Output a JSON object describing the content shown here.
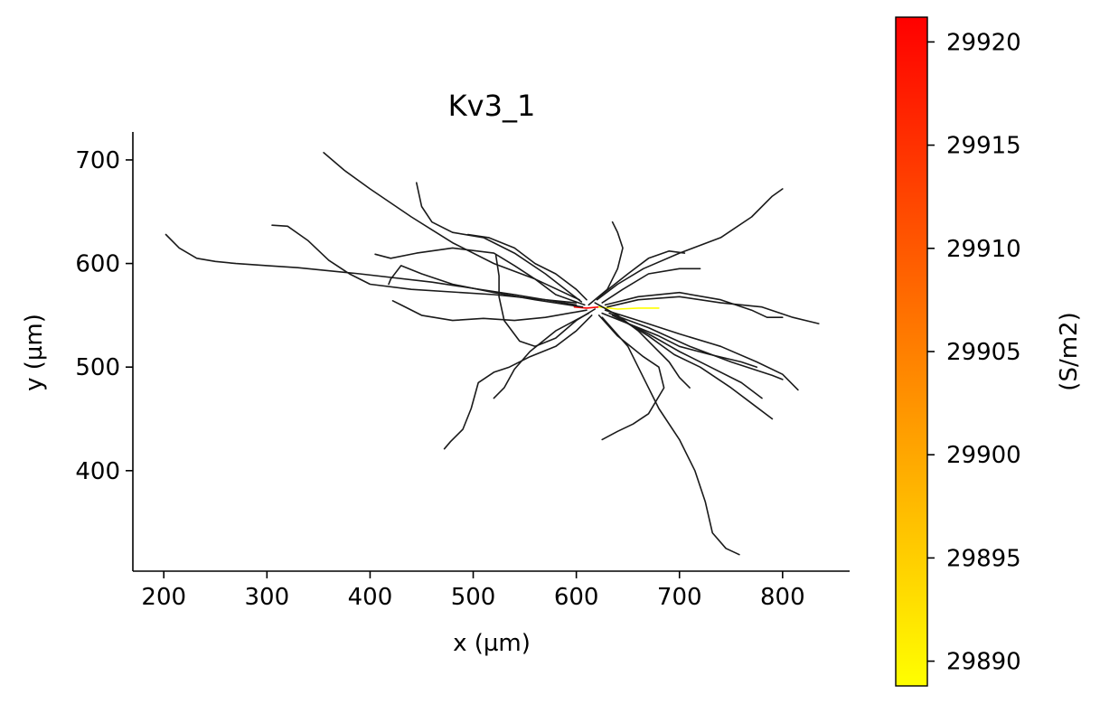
{
  "chart_data": {
    "type": "line",
    "title": "Kv3_1",
    "xlabel": "x (µm)",
    "ylabel": "y (µm)",
    "xlim": [
      170,
      865
    ],
    "ylim": [
      303,
      727
    ],
    "xticks": [
      200,
      300,
      400,
      500,
      600,
      700,
      800
    ],
    "yticks": [
      400,
      500,
      600,
      700
    ],
    "grid": false,
    "line_color": "#1a1a1a",
    "colorbar": {
      "label": "(S/m2)",
      "colormap": "autumn_r",
      "color_low": "#ffff00",
      "color_high": "#ff0000",
      "range": [
        29888.8,
        29921.2
      ],
      "ticks": [
        29890,
        29895,
        29900,
        29905,
        29910,
        29915,
        29920
      ]
    },
    "series": [
      {
        "color": "#ff0000",
        "points": [
          [
            598,
            558
          ],
          [
            610,
            557
          ],
          [
            622,
            558
          ]
        ]
      },
      {
        "color": "#ffff00",
        "points": [
          [
            622,
            558
          ],
          [
            640,
            556
          ],
          [
            660,
            557
          ],
          [
            680,
            557
          ]
        ]
      },
      {
        "color": "#1a1a1a",
        "points": [
          [
            600,
            560
          ],
          [
            540,
            570
          ],
          [
            460,
            582
          ],
          [
            390,
            590
          ],
          [
            330,
            596
          ],
          [
            300,
            598
          ],
          [
            270,
            600
          ],
          [
            250,
            602
          ],
          [
            232,
            605
          ],
          [
            215,
            615
          ],
          [
            202,
            628
          ]
        ]
      },
      {
        "color": "#1a1a1a",
        "points": [
          [
            600,
            562
          ],
          [
            520,
            570
          ],
          [
            440,
            575
          ],
          [
            400,
            580
          ],
          [
            380,
            590
          ],
          [
            360,
            603
          ],
          [
            340,
            622
          ],
          [
            320,
            636
          ],
          [
            305,
            637
          ]
        ]
      },
      {
        "color": "#1a1a1a",
        "points": [
          [
            603,
            565
          ],
          [
            560,
            585
          ],
          [
            520,
            600
          ],
          [
            480,
            620
          ],
          [
            440,
            645
          ],
          [
            400,
            672
          ],
          [
            375,
            690
          ],
          [
            355,
            707
          ]
        ]
      },
      {
        "color": "#1a1a1a",
        "points": [
          [
            605,
            563
          ],
          [
            570,
            590
          ],
          [
            540,
            610
          ],
          [
            510,
            625
          ],
          [
            480,
            630
          ],
          [
            460,
            640
          ],
          [
            450,
            655
          ],
          [
            445,
            678
          ]
        ]
      },
      {
        "color": "#1a1a1a",
        "points": [
          [
            608,
            560
          ],
          [
            580,
            570
          ],
          [
            560,
            585
          ],
          [
            540,
            598
          ],
          [
            520,
            610
          ],
          [
            480,
            615
          ],
          [
            445,
            610
          ],
          [
            420,
            605
          ],
          [
            405,
            609
          ]
        ]
      },
      {
        "color": "#1a1a1a",
        "points": [
          [
            606,
            558
          ],
          [
            560,
            565
          ],
          [
            520,
            572
          ],
          [
            480,
            580
          ],
          [
            450,
            590
          ],
          [
            430,
            598
          ],
          [
            420,
            585
          ],
          [
            418,
            580
          ]
        ]
      },
      {
        "color": "#1a1a1a",
        "points": [
          [
            610,
            555
          ],
          [
            570,
            548
          ],
          [
            540,
            545
          ],
          [
            510,
            547
          ],
          [
            480,
            545
          ],
          [
            450,
            550
          ],
          [
            430,
            560
          ],
          [
            422,
            564
          ]
        ]
      },
      {
        "color": "#1a1a1a",
        "points": [
          [
            612,
            552
          ],
          [
            580,
            535
          ],
          [
            555,
            515
          ],
          [
            540,
            498
          ],
          [
            530,
            480
          ],
          [
            520,
            470
          ]
        ]
      },
      {
        "color": "#1a1a1a",
        "points": [
          [
            615,
            550
          ],
          [
            600,
            535
          ],
          [
            580,
            520
          ],
          [
            555,
            510
          ],
          [
            535,
            500
          ],
          [
            520,
            495
          ],
          [
            505,
            485
          ],
          [
            498,
            460
          ],
          [
            490,
            440
          ],
          [
            478,
            428
          ],
          [
            472,
            421
          ]
        ]
      },
      {
        "color": "#1a1a1a",
        "points": [
          [
            618,
            556
          ],
          [
            600,
            545
          ],
          [
            580,
            528
          ],
          [
            560,
            520
          ],
          [
            545,
            525
          ],
          [
            530,
            545
          ],
          [
            525,
            568
          ],
          [
            525,
            588
          ],
          [
            522,
            608
          ]
        ]
      },
      {
        "color": "#1a1a1a",
        "points": [
          [
            622,
            550
          ],
          [
            640,
            530
          ],
          [
            665,
            510
          ],
          [
            680,
            500
          ],
          [
            685,
            480
          ],
          [
            670,
            455
          ],
          [
            655,
            445
          ],
          [
            640,
            438
          ],
          [
            625,
            430
          ]
        ]
      },
      {
        "color": "#1a1a1a",
        "points": [
          [
            625,
            548
          ],
          [
            650,
            520
          ],
          [
            665,
            490
          ],
          [
            680,
            460
          ],
          [
            700,
            430
          ],
          [
            715,
            400
          ],
          [
            725,
            370
          ],
          [
            732,
            340
          ],
          [
            745,
            325
          ],
          [
            758,
            319
          ]
        ]
      },
      {
        "color": "#1a1a1a",
        "points": [
          [
            625,
            552
          ],
          [
            655,
            540
          ],
          [
            680,
            530
          ],
          [
            700,
            520
          ],
          [
            730,
            512
          ],
          [
            760,
            505
          ],
          [
            775,
            500
          ]
        ]
      },
      {
        "color": "#1a1a1a",
        "points": [
          [
            628,
            555
          ],
          [
            660,
            545
          ],
          [
            700,
            532
          ],
          [
            740,
            520
          ],
          [
            775,
            505
          ],
          [
            800,
            493
          ],
          [
            815,
            478
          ]
        ]
      },
      {
        "color": "#1a1a1a",
        "points": [
          [
            632,
            552
          ],
          [
            670,
            538
          ],
          [
            710,
            520
          ],
          [
            750,
            505
          ],
          [
            790,
            492
          ],
          [
            800,
            488
          ]
        ]
      },
      {
        "color": "#1a1a1a",
        "points": [
          [
            635,
            550
          ],
          [
            670,
            532
          ],
          [
            700,
            515
          ],
          [
            730,
            500
          ],
          [
            760,
            485
          ],
          [
            780,
            470
          ]
        ]
      },
      {
        "color": "#1a1a1a",
        "points": [
          [
            640,
            548
          ],
          [
            670,
            530
          ],
          [
            695,
            512
          ],
          [
            720,
            500
          ],
          [
            750,
            480
          ],
          [
            770,
            465
          ],
          [
            790,
            450
          ]
        ]
      },
      {
        "color": "#1a1a1a",
        "points": [
          [
            630,
            558
          ],
          [
            660,
            565
          ],
          [
            700,
            568
          ],
          [
            740,
            562
          ],
          [
            780,
            558
          ],
          [
            810,
            548
          ],
          [
            835,
            542
          ]
        ]
      },
      {
        "color": "#1a1a1a",
        "points": [
          [
            628,
            560
          ],
          [
            660,
            568
          ],
          [
            700,
            572
          ],
          [
            740,
            565
          ],
          [
            770,
            555
          ],
          [
            785,
            548
          ],
          [
            800,
            548
          ]
        ]
      },
      {
        "color": "#1a1a1a",
        "points": [
          [
            625,
            562
          ],
          [
            645,
            575
          ],
          [
            670,
            590
          ],
          [
            700,
            595
          ],
          [
            720,
            595
          ]
        ]
      },
      {
        "color": "#1a1a1a",
        "points": [
          [
            620,
            565
          ],
          [
            640,
            580
          ],
          [
            665,
            595
          ],
          [
            700,
            610
          ],
          [
            740,
            625
          ],
          [
            770,
            645
          ],
          [
            790,
            665
          ],
          [
            800,
            672
          ]
        ]
      },
      {
        "color": "#1a1a1a",
        "points": [
          [
            622,
            568
          ],
          [
            650,
            590
          ],
          [
            670,
            605
          ],
          [
            690,
            612
          ],
          [
            705,
            610
          ]
        ]
      },
      {
        "color": "#1a1a1a",
        "points": [
          [
            610,
            565
          ],
          [
            600,
            575
          ],
          [
            580,
            590
          ],
          [
            560,
            600
          ],
          [
            540,
            615
          ],
          [
            515,
            625
          ],
          [
            495,
            628
          ]
        ]
      },
      {
        "color": "#1a1a1a",
        "points": [
          [
            612,
            560
          ],
          [
            630,
            575
          ],
          [
            640,
            595
          ],
          [
            645,
            615
          ],
          [
            640,
            630
          ],
          [
            635,
            640
          ]
        ]
      },
      {
        "color": "#1a1a1a",
        "points": [
          [
            618,
            562
          ],
          [
            640,
            550
          ],
          [
            660,
            535
          ],
          [
            675,
            520
          ],
          [
            690,
            505
          ],
          [
            700,
            490
          ],
          [
            710,
            480
          ]
        ]
      }
    ]
  }
}
